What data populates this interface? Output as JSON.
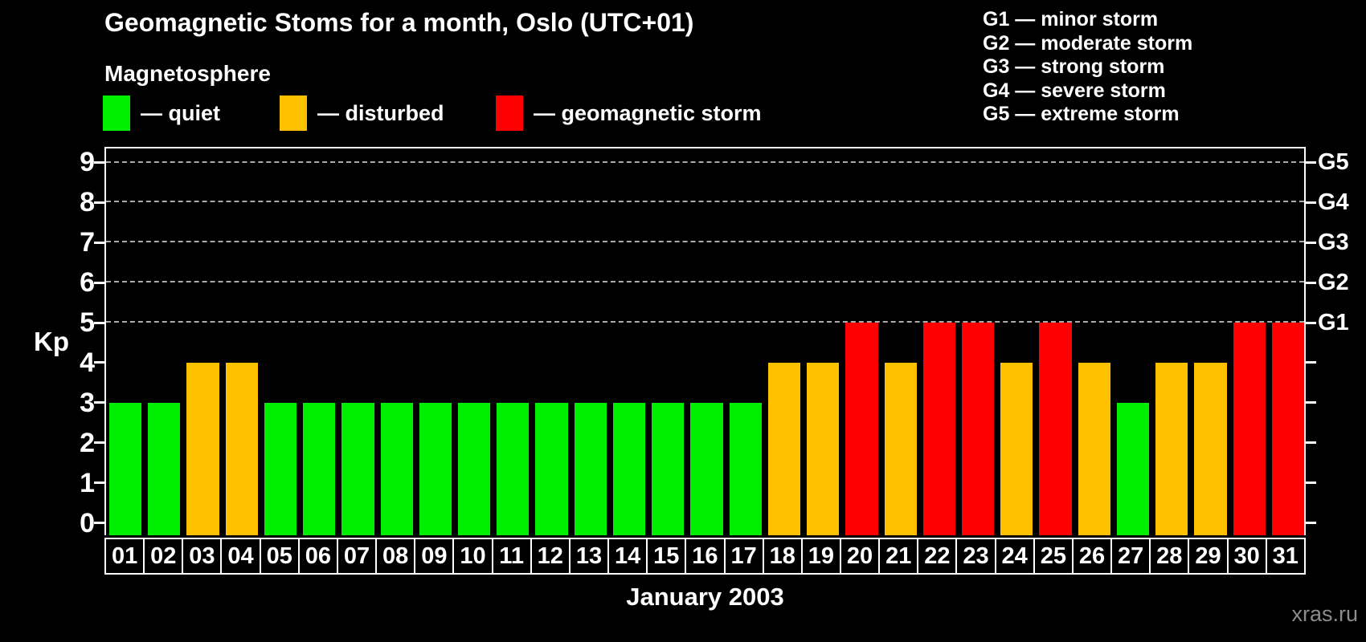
{
  "title": "Geomagnetic Stoms for a month, Oslo (UTC+01)",
  "legend": {
    "heading": "Magnetosphere",
    "items": [
      {
        "name": "quiet",
        "label": "— quiet",
        "color": "#00ee00"
      },
      {
        "name": "disturbed",
        "label": "— disturbed",
        "color": "#ffc000"
      },
      {
        "name": "storm",
        "label": "— geomagnetic storm",
        "color": "#ff0000"
      }
    ]
  },
  "storm_scale_legend": [
    "G1 — minor storm",
    "G2 — moderate storm",
    "G3 — strong storm",
    "G4 — severe storm",
    "G5 — extreme storm"
  ],
  "watermark": "xras.ru",
  "chart_data": {
    "type": "bar",
    "title": "Geomagnetic Stoms for a month, Oslo (UTC+01)",
    "xlabel": "January 2003",
    "ylabel": "Kp",
    "ylim": [
      0,
      9
    ],
    "y_ticks": [
      0,
      1,
      2,
      3,
      4,
      5,
      6,
      7,
      8,
      9
    ],
    "gridlines_at": [
      5,
      6,
      7,
      8,
      9
    ],
    "grid": "dashed gray horizontal lines at Kp 5-9 only",
    "legend_position": "top-left",
    "right_axis": [
      {
        "label": "G1",
        "kp": 5
      },
      {
        "label": "G2",
        "kp": 6
      },
      {
        "label": "G3",
        "kp": 7
      },
      {
        "label": "G4",
        "kp": 8
      },
      {
        "label": "G5",
        "kp": 9
      }
    ],
    "categories": [
      "01",
      "02",
      "03",
      "04",
      "05",
      "06",
      "07",
      "08",
      "09",
      "10",
      "11",
      "12",
      "13",
      "14",
      "15",
      "16",
      "17",
      "18",
      "19",
      "20",
      "21",
      "22",
      "23",
      "24",
      "25",
      "26",
      "27",
      "28",
      "29",
      "30",
      "31"
    ],
    "values": [
      3,
      3,
      4,
      4,
      3,
      3,
      3,
      3,
      3,
      3,
      3,
      3,
      3,
      3,
      3,
      3,
      3,
      4,
      4,
      5,
      4,
      5,
      5,
      4,
      5,
      4,
      3,
      4,
      4,
      5,
      5
    ],
    "colors": {
      "quiet": "#00ee00",
      "disturbed": "#ffc000",
      "storm": "#ff0000"
    },
    "color_rule": "kp<=3 quiet(green), kp=4 disturbed(orange), kp>=5 storm(red)"
  }
}
